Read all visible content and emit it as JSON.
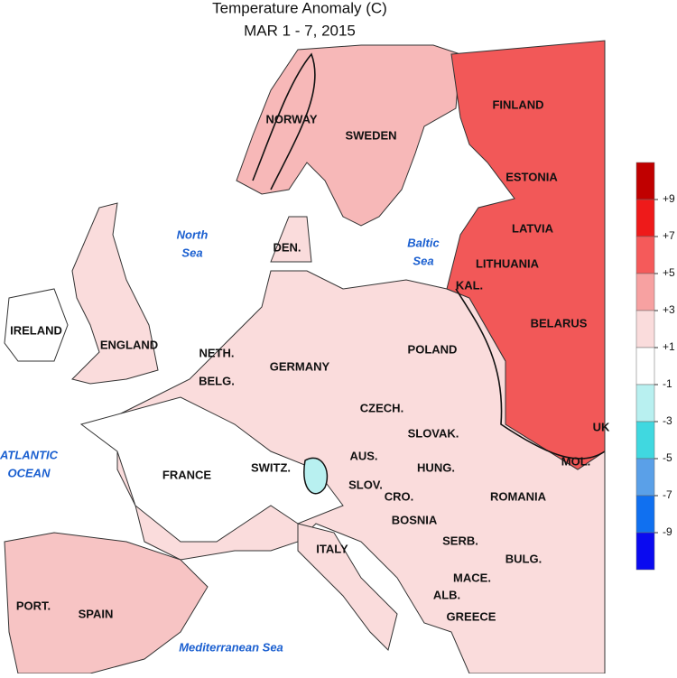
{
  "title": "Temperature Anomaly (C)",
  "subtitle": "MAR 1 - 7, 2015",
  "colorbar": {
    "colors": [
      "#c00000",
      "#ee1a1a",
      "#f55a5a",
      "#f7a1a1",
      "#fadcdc",
      "#ffffff",
      "#b8f0f0",
      "#40d8e0",
      "#5aa0e8",
      "#1070f0",
      "#0a0af0"
    ],
    "ticks": [
      {
        "value": 9,
        "label": "+9"
      },
      {
        "value": 7,
        "label": "+7"
      },
      {
        "value": 5,
        "label": "+5"
      },
      {
        "value": 3,
        "label": "+3"
      },
      {
        "value": 1,
        "label": "+1"
      },
      -1,
      -3,
      -5,
      -7,
      -9
    ]
  },
  "countries": [
    "NORWAY",
    "SWEDEN",
    "FINLAND",
    "ESTONIA",
    "LATVIA",
    "LITHUANIA",
    "KAL.",
    "BELARUS",
    "DEN.",
    "IRELAND",
    "ENGLAND",
    "NETH.",
    "BELG.",
    "GERMANY",
    "POLAND",
    "CZECH.",
    "SLOVAK.",
    "UK",
    "AUS.",
    "HUNG.",
    "FRANCE",
    "SWITZ.",
    "SLOV.",
    "CRO.",
    "MOL.",
    "ROMANIA",
    "BOSNIA",
    "SERB.",
    "BULG.",
    "ITALY",
    "MACE.",
    "ALB.",
    "GREECE",
    "PORT.",
    "SPAIN"
  ],
  "seas": [
    [
      "North",
      "Sea"
    ],
    [
      "Baltic",
      "Sea"
    ],
    [
      "ATLANTIC",
      "OCEAN"
    ],
    [
      "Mediterranean Sea"
    ]
  ]
}
